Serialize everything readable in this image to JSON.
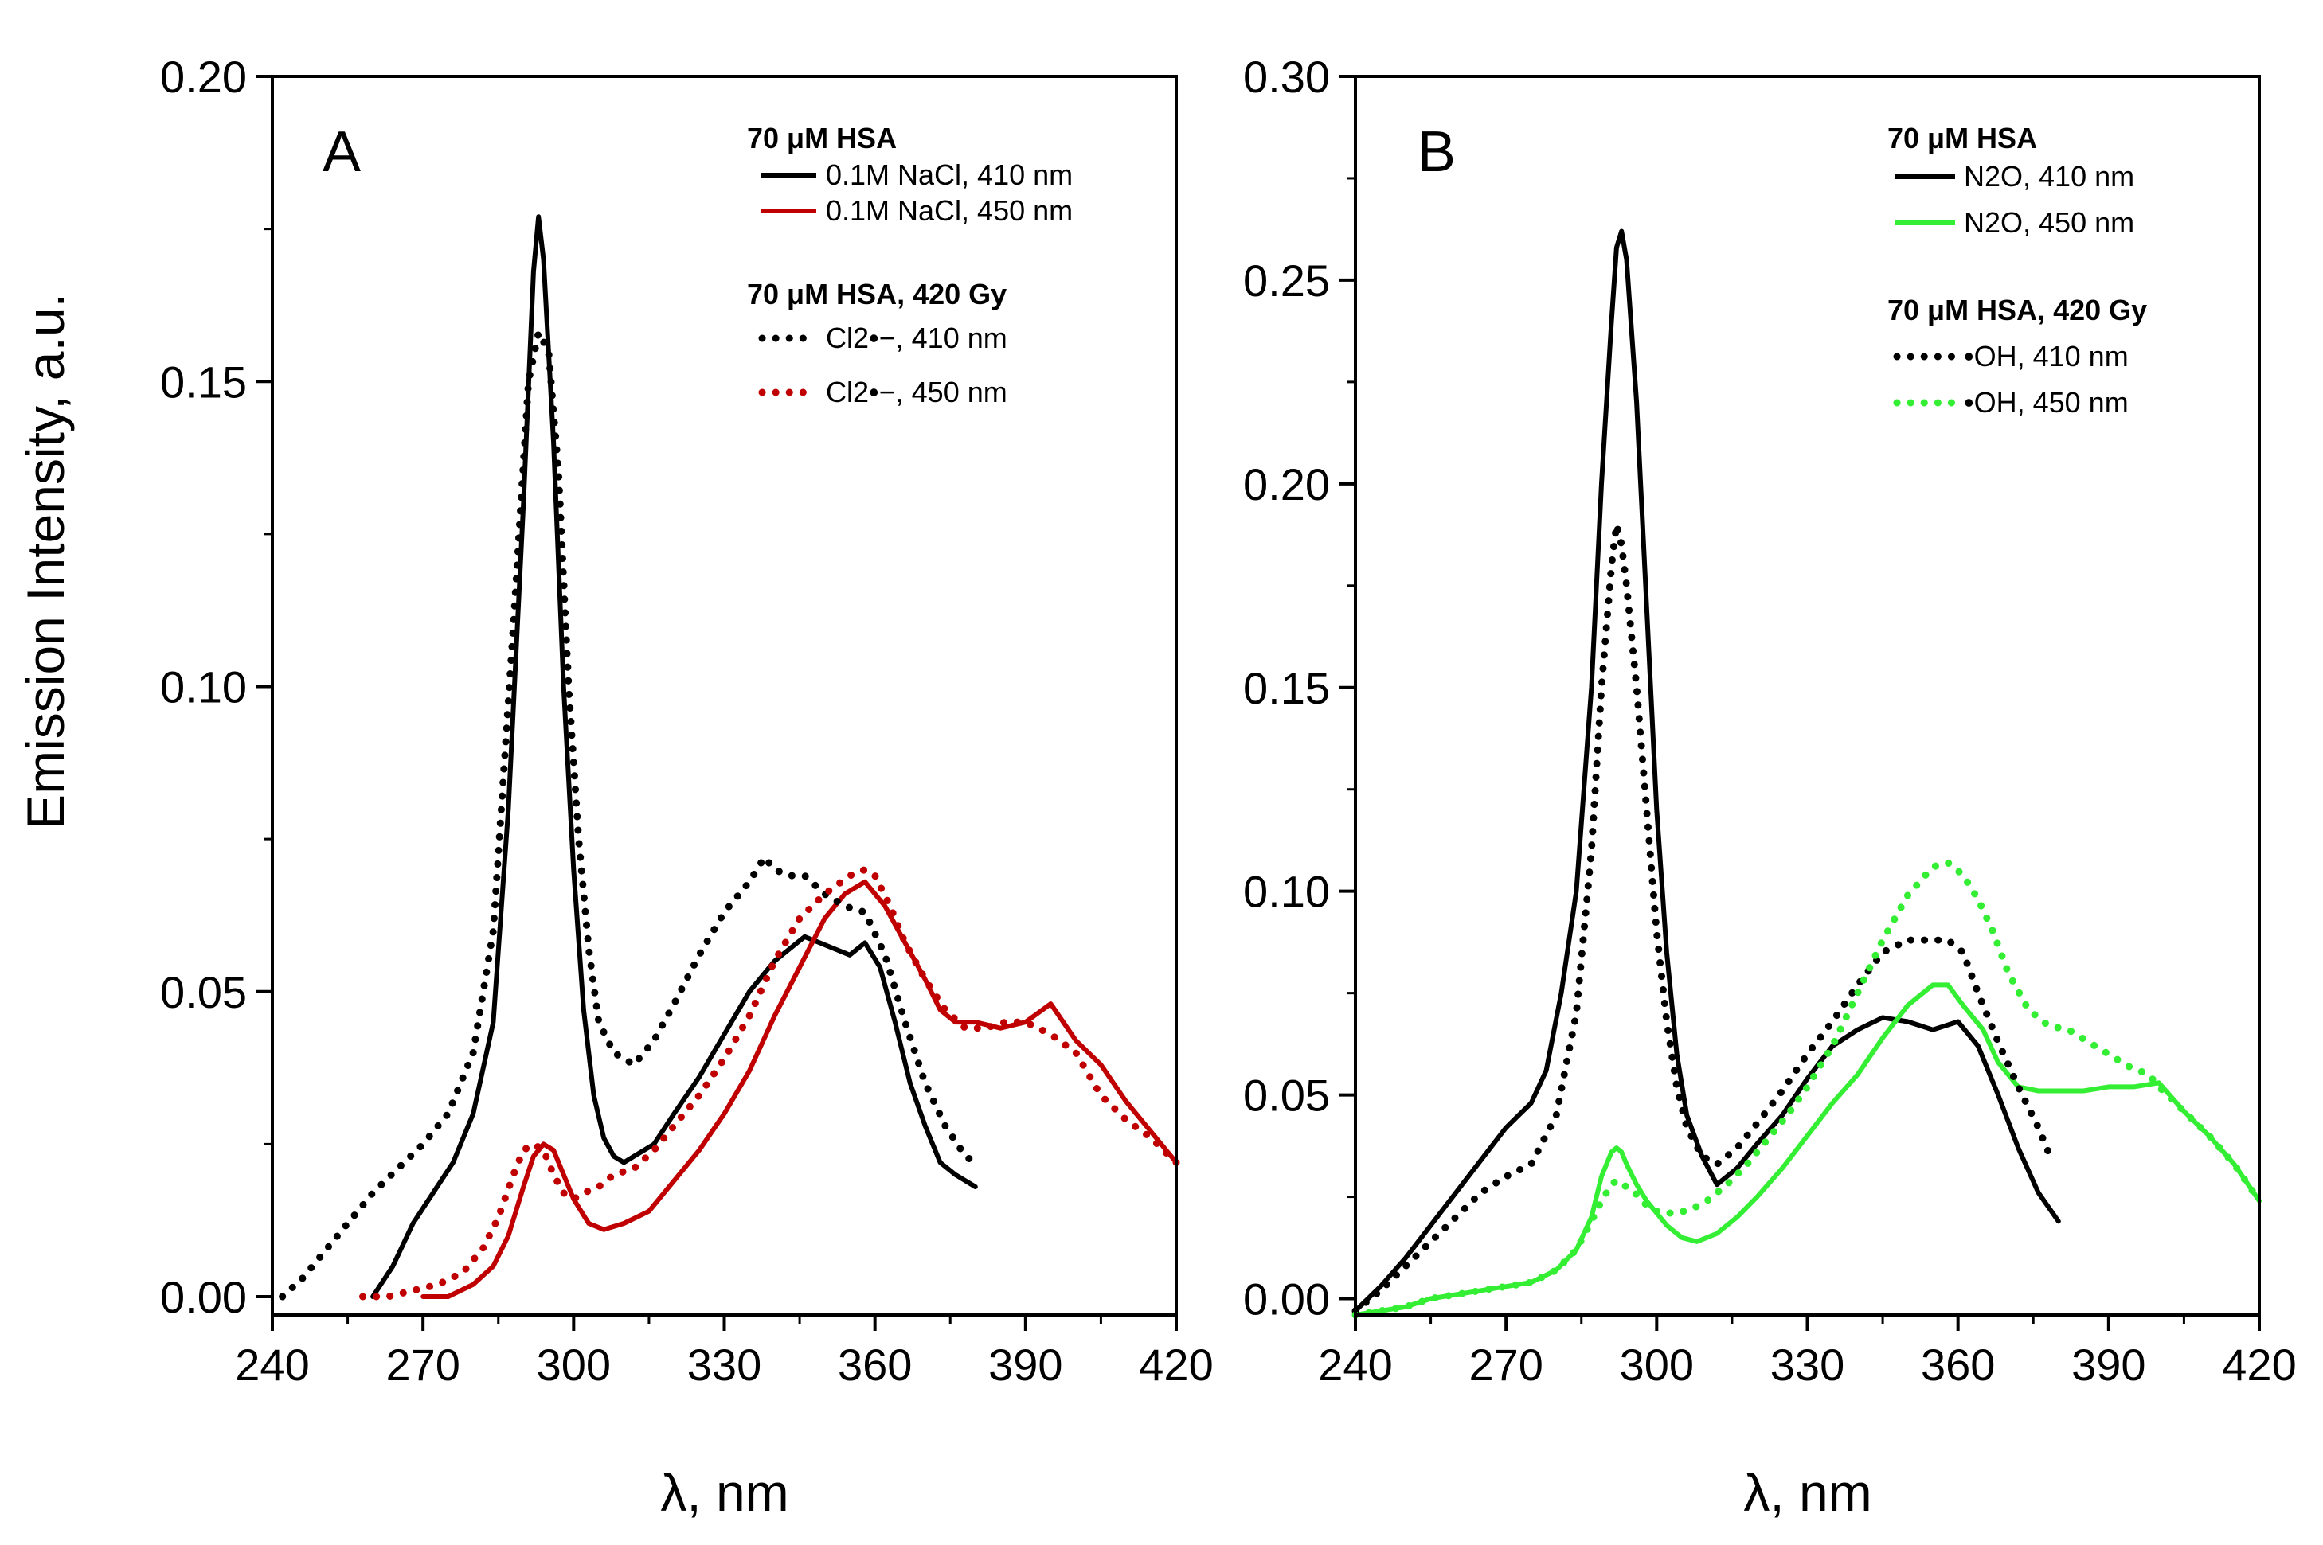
{
  "figure": {
    "ylabel": "Emission Intensity, a.u."
  },
  "chart_data": [
    {
      "type": "line",
      "panel": "A",
      "xlabel": "λ, nm",
      "ylabel": "Emission Intensity, a.u.",
      "xlim": [
        240,
        420
      ],
      "ylim": [
        -0.003,
        0.2
      ],
      "xticks": [
        240,
        270,
        300,
        330,
        360,
        390,
        420
      ],
      "xtick_labels": [
        "240",
        "270",
        "300",
        "330",
        "360",
        "390",
        "420"
      ],
      "yticks": [
        0,
        0.05,
        0.1,
        0.15,
        0.2
      ],
      "ytick_labels": [
        "0.00",
        "0.05",
        "0.10",
        "0.15",
        "0.20"
      ],
      "legend": {
        "group1": "70 μM HSA",
        "group2": "70 μM HSA, 420 Gy",
        "position": "top-right"
      },
      "series": [
        {
          "name": "0.1M NaCl, 410 nm",
          "color": "#000000",
          "style": "solid",
          "x": [
            260,
            264,
            268,
            272,
            276,
            280,
            284,
            287,
            290,
            292,
            293,
            294,
            296,
            298,
            300,
            302,
            304,
            306,
            308,
            310,
            312,
            316,
            320,
            325,
            330,
            335,
            340,
            343,
            346,
            349,
            352,
            355,
            358,
            361,
            364,
            367,
            370,
            373,
            376,
            380
          ],
          "y": [
            0.0,
            0.005,
            0.012,
            0.017,
            0.022,
            0.03,
            0.045,
            0.08,
            0.13,
            0.168,
            0.177,
            0.17,
            0.14,
            0.1,
            0.07,
            0.047,
            0.033,
            0.026,
            0.023,
            0.022,
            0.023,
            0.025,
            0.03,
            0.036,
            0.043,
            0.05,
            0.055,
            0.057,
            0.059,
            0.058,
            0.057,
            0.056,
            0.058,
            0.054,
            0.045,
            0.035,
            0.028,
            0.022,
            0.02,
            0.018
          ]
        },
        {
          "name": "0.1M NaCl, 450 nm",
          "color": "#c00000",
          "style": "solid",
          "x": [
            270,
            275,
            280,
            284,
            287,
            290,
            292,
            294,
            296,
            298,
            300,
            303,
            306,
            310,
            315,
            320,
            325,
            330,
            335,
            340,
            345,
            350,
            354,
            358,
            362,
            366,
            370,
            373,
            376,
            380,
            385,
            390,
            395,
            400,
            405,
            410,
            415,
            420
          ],
          "y": [
            0.0,
            0.0,
            0.002,
            0.005,
            0.01,
            0.018,
            0.023,
            0.025,
            0.024,
            0.02,
            0.016,
            0.012,
            0.011,
            0.012,
            0.014,
            0.019,
            0.024,
            0.03,
            0.037,
            0.046,
            0.054,
            0.062,
            0.066,
            0.068,
            0.064,
            0.058,
            0.052,
            0.047,
            0.045,
            0.045,
            0.044,
            0.045,
            0.048,
            0.042,
            0.038,
            0.032,
            0.027,
            0.022
          ]
        },
        {
          "name": "Cl2•−, 410 nm",
          "color": "#000000",
          "style": "dotted",
          "x": [
            242,
            246,
            250,
            255,
            260,
            265,
            270,
            275,
            280,
            284,
            288,
            291,
            293,
            295,
            297,
            299,
            301,
            303,
            305,
            308,
            312,
            316,
            320,
            325,
            330,
            335,
            338,
            340,
            343,
            346,
            350,
            354,
            358,
            362,
            366,
            370,
            374,
            378,
            380
          ],
          "y": [
            0.0,
            0.003,
            0.007,
            0.012,
            0.017,
            0.021,
            0.025,
            0.03,
            0.04,
            0.06,
            0.11,
            0.15,
            0.158,
            0.155,
            0.135,
            0.1,
            0.075,
            0.057,
            0.045,
            0.04,
            0.038,
            0.042,
            0.048,
            0.056,
            0.063,
            0.068,
            0.072,
            0.07,
            0.069,
            0.069,
            0.066,
            0.064,
            0.063,
            0.056,
            0.045,
            0.035,
            0.028,
            0.023,
            0.022
          ]
        },
        {
          "name": "Cl2•−, 450 nm",
          "color": "#c00000",
          "style": "dotted",
          "x": [
            258,
            263,
            268,
            273,
            278,
            282,
            285,
            288,
            290,
            292,
            294,
            296,
            298,
            300,
            302,
            305,
            308,
            312,
            316,
            320,
            325,
            330,
            335,
            340,
            345,
            350,
            355,
            358,
            360,
            363,
            366,
            370,
            374,
            378,
            382,
            386,
            390,
            395,
            400,
            405,
            410,
            415,
            420
          ],
          "y": [
            0.0,
            0.0,
            0.001,
            0.002,
            0.004,
            0.008,
            0.013,
            0.02,
            0.024,
            0.025,
            0.024,
            0.02,
            0.017,
            0.016,
            0.017,
            0.018,
            0.02,
            0.021,
            0.024,
            0.028,
            0.033,
            0.039,
            0.046,
            0.055,
            0.062,
            0.066,
            0.069,
            0.07,
            0.069,
            0.064,
            0.058,
            0.052,
            0.047,
            0.044,
            0.044,
            0.045,
            0.045,
            0.043,
            0.04,
            0.033,
            0.029,
            0.026,
            0.022
          ]
        }
      ]
    },
    {
      "type": "line",
      "panel": "B",
      "xlabel": "λ, nm",
      "ylabel": "",
      "xlim": [
        240,
        420
      ],
      "ylim": [
        -0.004,
        0.3
      ],
      "xticks": [
        240,
        270,
        300,
        330,
        360,
        390,
        420
      ],
      "xtick_labels": [
        "240",
        "270",
        "300",
        "330",
        "360",
        "390",
        "420"
      ],
      "yticks": [
        0,
        0.05,
        0.1,
        0.15,
        0.2,
        0.25,
        0.3
      ],
      "ytick_labels": [
        "0.00",
        "0.05",
        "0.10",
        "0.15",
        "0.20",
        "0.25",
        "0.30"
      ],
      "legend": {
        "group1": "70 μM HSA",
        "group2": "70 μM HSA, 420 Gy",
        "position": "top-right"
      },
      "series": [
        {
          "name": "N2O, 410 nm",
          "color": "#000000",
          "style": "solid",
          "x": [
            240,
            245,
            250,
            255,
            260,
            265,
            270,
            275,
            278,
            281,
            284,
            287,
            289,
            291,
            292,
            293,
            294,
            296,
            298,
            300,
            302,
            304,
            306,
            309,
            312,
            316,
            320,
            325,
            330,
            335,
            340,
            345,
            350,
            355,
            360,
            364,
            368,
            372,
            376,
            380
          ],
          "y": [
            -0.003,
            0.003,
            0.01,
            0.018,
            0.026,
            0.034,
            0.042,
            0.048,
            0.056,
            0.075,
            0.1,
            0.15,
            0.2,
            0.24,
            0.258,
            0.262,
            0.255,
            0.22,
            0.17,
            0.12,
            0.085,
            0.06,
            0.045,
            0.035,
            0.028,
            0.032,
            0.038,
            0.045,
            0.054,
            0.062,
            0.066,
            0.069,
            0.068,
            0.066,
            0.068,
            0.062,
            0.05,
            0.037,
            0.026,
            0.019
          ]
        },
        {
          "name": "N2O, 450 nm",
          "color": "#33ee33",
          "style": "solid",
          "x": [
            240,
            245,
            250,
            255,
            260,
            265,
            270,
            275,
            280,
            284,
            287,
            289,
            291,
            292,
            293,
            294,
            296,
            298,
            300,
            302,
            305,
            308,
            312,
            316,
            320,
            325,
            330,
            335,
            340,
            345,
            350,
            355,
            358,
            361,
            365,
            368,
            372,
            376,
            380,
            385,
            390,
            395,
            400,
            405,
            410,
            415,
            420
          ],
          "y": [
            -0.004,
            -0.003,
            -0.002,
            0.0,
            0.001,
            0.002,
            0.003,
            0.004,
            0.007,
            0.012,
            0.02,
            0.03,
            0.036,
            0.037,
            0.036,
            0.033,
            0.028,
            0.024,
            0.021,
            0.018,
            0.015,
            0.014,
            0.016,
            0.02,
            0.025,
            0.032,
            0.04,
            0.048,
            0.055,
            0.064,
            0.072,
            0.077,
            0.077,
            0.072,
            0.066,
            0.058,
            0.052,
            0.051,
            0.051,
            0.051,
            0.052,
            0.052,
            0.053,
            0.046,
            0.04,
            0.033,
            0.024
          ]
        },
        {
          "name": "•OH, 410 nm",
          "color": "#000000",
          "style": "dotted",
          "x": [
            240,
            245,
            250,
            255,
            260,
            265,
            270,
            275,
            280,
            284,
            287,
            289,
            291,
            292,
            293,
            294,
            296,
            298,
            300,
            302,
            304,
            306,
            309,
            312,
            316,
            320,
            325,
            330,
            335,
            340,
            345,
            350,
            355,
            358,
            361,
            364,
            368,
            372,
            376,
            378
          ],
          "y": [
            -0.003,
            0.002,
            0.008,
            0.014,
            0.02,
            0.026,
            0.03,
            0.033,
            0.045,
            0.07,
            0.11,
            0.15,
            0.18,
            0.19,
            0.185,
            0.175,
            0.15,
            0.12,
            0.09,
            0.068,
            0.052,
            0.042,
            0.035,
            0.033,
            0.037,
            0.043,
            0.051,
            0.06,
            0.068,
            0.077,
            0.085,
            0.088,
            0.088,
            0.088,
            0.085,
            0.075,
            0.063,
            0.052,
            0.042,
            0.036
          ]
        },
        {
          "name": "•OH, 450 nm",
          "color": "#33ee33",
          "style": "dotted",
          "x": [
            240,
            245,
            250,
            255,
            260,
            265,
            270,
            275,
            280,
            284,
            287,
            289,
            291,
            292,
            293,
            295,
            297,
            299,
            301,
            304,
            307,
            310,
            314,
            318,
            322,
            326,
            330,
            335,
            340,
            345,
            350,
            355,
            358,
            361,
            364,
            367,
            370,
            374,
            378,
            382,
            386,
            390,
            394,
            398,
            400,
            405,
            410,
            415,
            420
          ],
          "y": [
            -0.004,
            -0.003,
            -0.002,
            0.0,
            0.001,
            0.002,
            0.003,
            0.004,
            0.007,
            0.012,
            0.019,
            0.024,
            0.028,
            0.029,
            0.028,
            0.027,
            0.024,
            0.022,
            0.021,
            0.021,
            0.022,
            0.024,
            0.028,
            0.033,
            0.039,
            0.045,
            0.052,
            0.062,
            0.075,
            0.088,
            0.099,
            0.106,
            0.107,
            0.104,
            0.098,
            0.09,
            0.08,
            0.071,
            0.067,
            0.066,
            0.063,
            0.06,
            0.057,
            0.055,
            0.052,
            0.046,
            0.04,
            0.033,
            0.024
          ]
        }
      ]
    }
  ]
}
